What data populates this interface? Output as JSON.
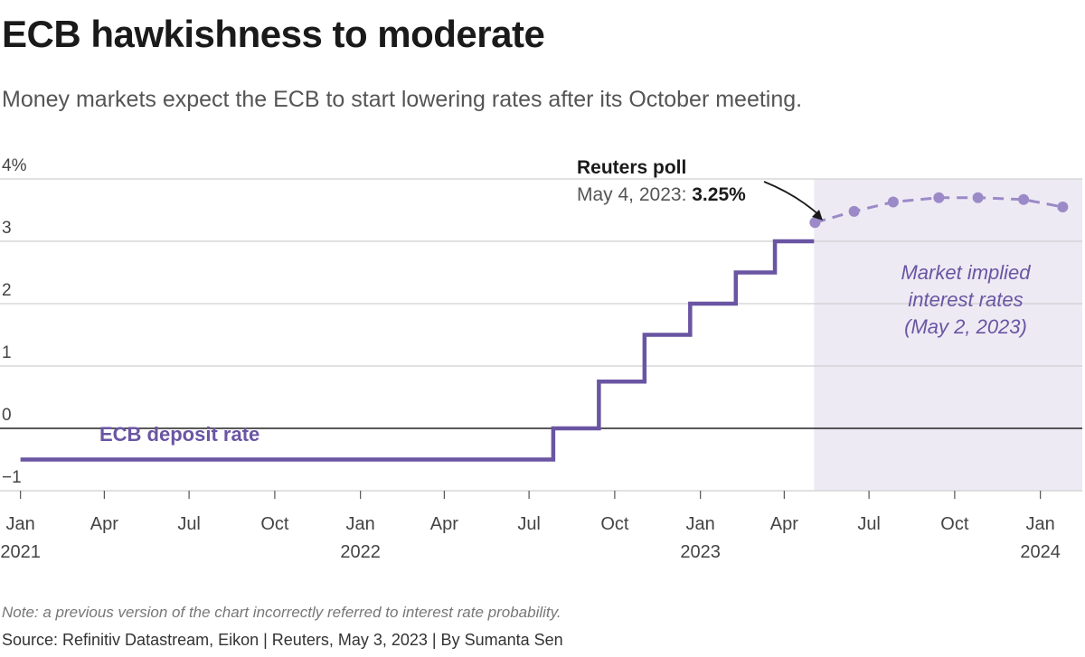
{
  "title": "ECB hawkishness to moderate",
  "subtitle": "Money markets expect the ECB to start lowering rates after its October meeting.",
  "note": "Note: a previous version of the chart incorrectly referred to interest rate probability.",
  "source": "Source: Refinitiv Datastream, Eikon | Reuters, May 3, 2023 | By Sumanta Sen",
  "annotations": {
    "series_label": "ECB deposit rate",
    "poll_title": "Reuters poll",
    "poll_date": "May 4, 2023: ",
    "poll_value": "3.25%",
    "market_line1": "Market implied",
    "market_line2": "interest rates",
    "market_line3": "(May 2, 2023)"
  },
  "colors": {
    "deposit_line": "#6a55a3",
    "market_dots": "#9b8ac7",
    "shade": "#edeaf4",
    "grid": "#cfcfcf",
    "zero_line": "#222222"
  },
  "chart_data": {
    "type": "line",
    "ylim": [
      -1,
      4
    ],
    "yticks": [
      {
        "v": 4,
        "label": "4%"
      },
      {
        "v": 3,
        "label": "3"
      },
      {
        "v": 2,
        "label": "2"
      },
      {
        "v": 1,
        "label": "1"
      },
      {
        "v": 0,
        "label": "0"
      },
      {
        "v": -1,
        "label": "−1"
      }
    ],
    "xticks": [
      {
        "date": "2021-01-01",
        "l1": "Jan",
        "l2": "2021"
      },
      {
        "date": "2021-04-01",
        "l1": "Apr",
        "l2": ""
      },
      {
        "date": "2021-07-01",
        "l1": "Jul",
        "l2": ""
      },
      {
        "date": "2021-10-01",
        "l1": "Oct",
        "l2": ""
      },
      {
        "date": "2022-01-01",
        "l1": "Jan",
        "l2": "2022"
      },
      {
        "date": "2022-04-01",
        "l1": "Apr",
        "l2": ""
      },
      {
        "date": "2022-07-01",
        "l1": "Jul",
        "l2": ""
      },
      {
        "date": "2022-10-01",
        "l1": "Oct",
        "l2": ""
      },
      {
        "date": "2023-01-01",
        "l1": "Jan",
        "l2": "2023"
      },
      {
        "date": "2023-04-01",
        "l1": "Apr",
        "l2": ""
      },
      {
        "date": "2023-07-01",
        "l1": "Jul",
        "l2": ""
      },
      {
        "date": "2023-10-01",
        "l1": "Oct",
        "l2": ""
      },
      {
        "date": "2024-01-01",
        "l1": "Jan",
        "l2": "2024"
      }
    ],
    "x_range": [
      "2020-12-10",
      "2024-02-15"
    ],
    "shaded_from": "2023-05-03",
    "series": [
      {
        "name": "ECB deposit rate",
        "style": "step",
        "points": [
          {
            "x": "2021-01-01",
            "y": -0.5
          },
          {
            "x": "2022-07-27",
            "y": 0.0
          },
          {
            "x": "2022-09-14",
            "y": 0.75
          },
          {
            "x": "2022-11-02",
            "y": 1.5
          },
          {
            "x": "2022-12-21",
            "y": 2.0
          },
          {
            "x": "2023-02-08",
            "y": 2.5
          },
          {
            "x": "2023-03-22",
            "y": 3.0
          },
          {
            "x": "2023-05-03",
            "y": 3.0
          }
        ]
      },
      {
        "name": "Market implied interest rates",
        "style": "dashed-dots",
        "points": [
          {
            "x": "2023-05-04",
            "y": 3.3
          },
          {
            "x": "2023-06-15",
            "y": 3.48
          },
          {
            "x": "2023-07-27",
            "y": 3.63
          },
          {
            "x": "2023-09-14",
            "y": 3.7
          },
          {
            "x": "2023-10-26",
            "y": 3.7
          },
          {
            "x": "2023-12-14",
            "y": 3.67
          },
          {
            "x": "2024-01-25",
            "y": 3.55
          }
        ]
      }
    ]
  }
}
